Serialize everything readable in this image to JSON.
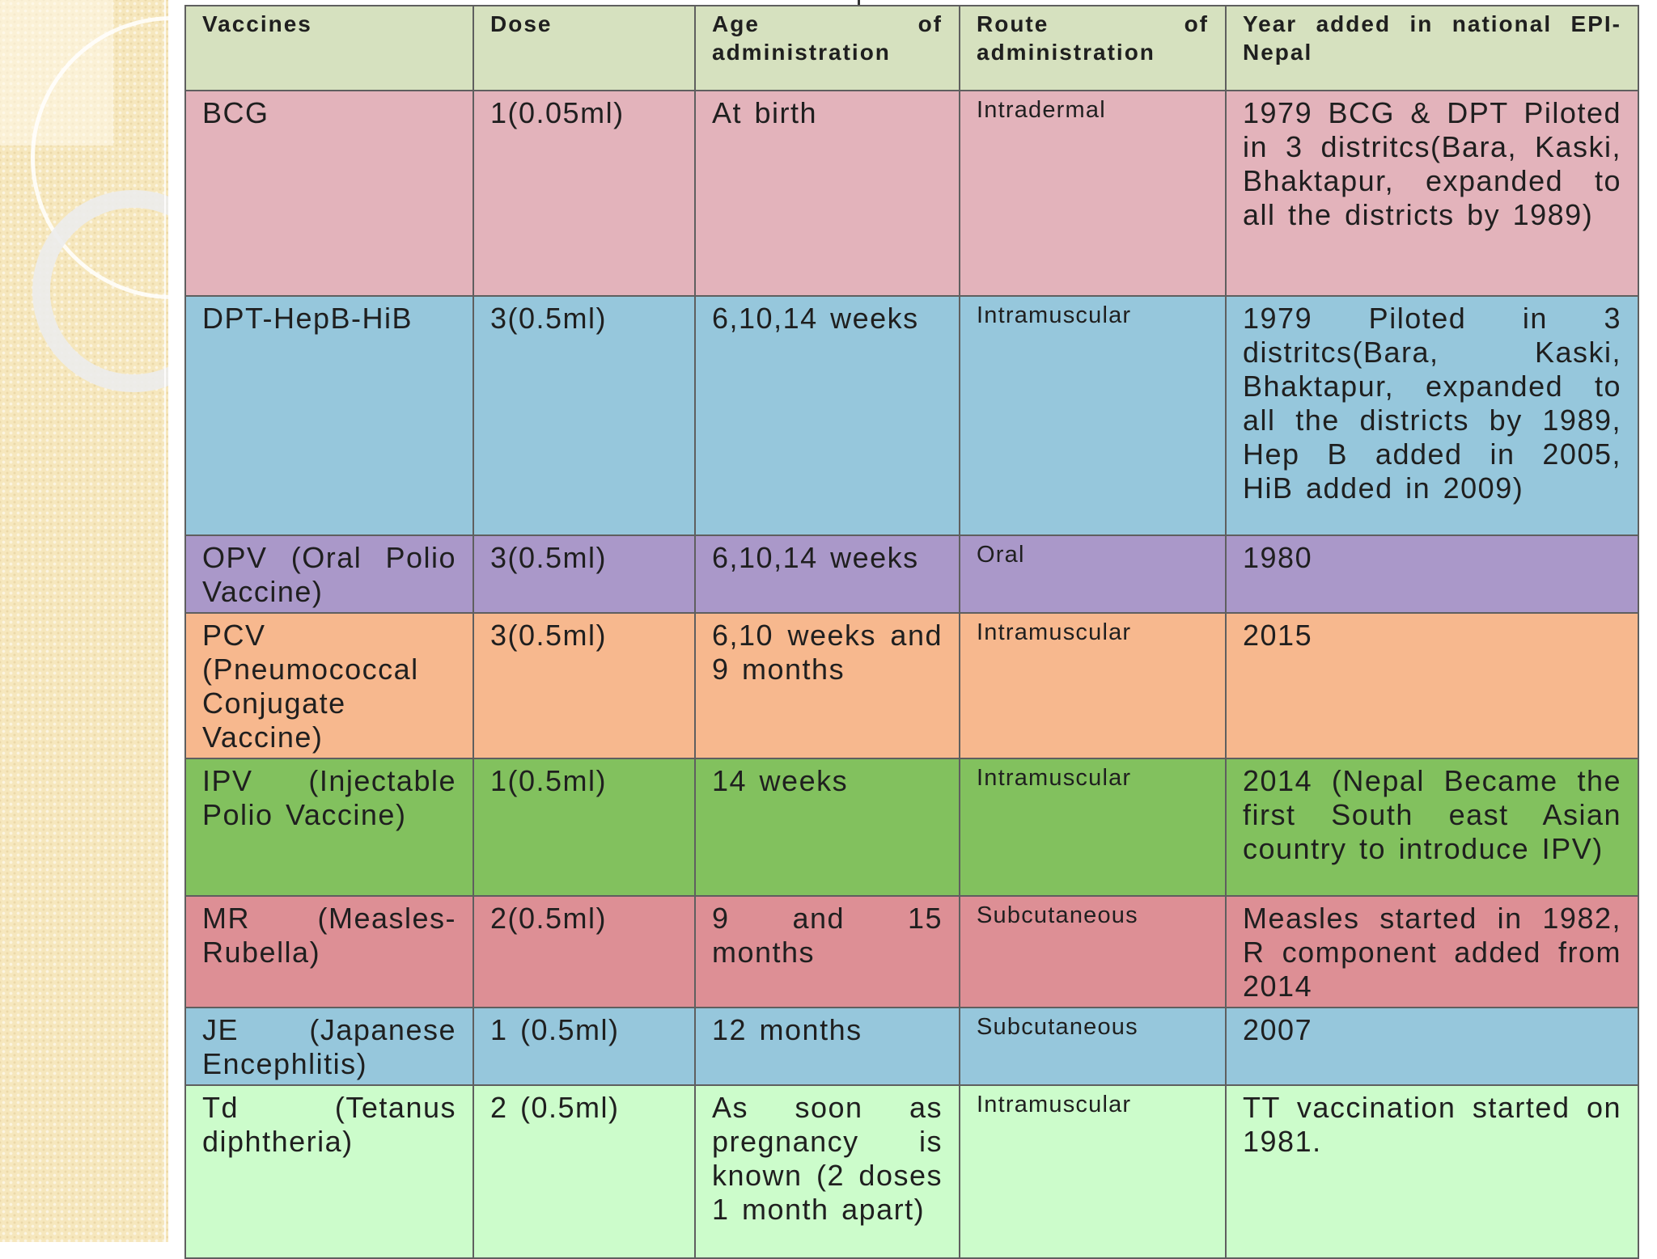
{
  "table": {
    "headers": [
      "Vaccines",
      "Dose",
      "Age of administration",
      "Route of administration",
      "Year added in national EPI-Nepal"
    ],
    "rows": [
      {
        "vaccine": "BCG",
        "dose": "1(0.05ml)",
        "age": "At birth",
        "route": "Intradermal",
        "year": "1979 BCG & DPT Piloted in 3 distritcs(Bara, Kaski, Bhaktapur, expanded to all the districts by 1989)"
      },
      {
        "vaccine": "DPT-HepB-HiB",
        "dose": "3(0.5ml)",
        "age": "6,10,14 weeks",
        "route": "Intramuscular",
        "year": "1979 Piloted in 3 distritcs(Bara, Kaski, Bhaktapur, expanded to all the districts by 1989, Hep B added in 2005, HiB added in 2009)"
      },
      {
        "vaccine": "OPV (Oral Polio Vaccine)",
        "dose": "3(0.5ml)",
        "age": "6,10,14 weeks",
        "route": "Oral",
        "year": "1980"
      },
      {
        "vaccine": "PCV (Pneumococcal Conjugate Vaccine)",
        "dose": "3(0.5ml)",
        "age": "6,10 weeks and 9 months",
        "route": "Intramuscular",
        "year": "2015"
      },
      {
        "vaccine": "IPV (Injectable Polio Vaccine)",
        "dose": "1(0.5ml)",
        "age": "14 weeks",
        "route": "Intramuscular",
        "year": "2014 (Nepal Became the first South east Asian country to introduce IPV)"
      },
      {
        "vaccine": "MR (Measles-Rubella)",
        "dose": "2(0.5ml)",
        "age": "9 and 15 months",
        "route": "Subcutaneous",
        "year": "Measles started in 1982, R component added from 2014"
      },
      {
        "vaccine": "JE (Japanese Encephlitis)",
        "dose": "1 (0.5ml)",
        "age": "12 months",
        "route": "Subcutaneous",
        "year": "2007"
      },
      {
        "vaccine": "Td (Tetanus diphtheria)",
        "dose": "2 (0.5ml)",
        "age": "As soon as pregnancy is known (2 doses 1 month apart)",
        "route": "Intramuscular",
        "year": "TT vaccination started on 1981."
      }
    ]
  },
  "colors": {
    "header": "#d6e1bf",
    "bcg": "#e3b3bb",
    "dpt": "#96c7dc",
    "opv": "#aa98c9",
    "pcv": "#f7b88e",
    "ipv": "#82c15e",
    "mr": "#dd8f95",
    "je": "#96c7dc",
    "td": "#ccfccb",
    "background_panel": "#f6e7bd"
  }
}
